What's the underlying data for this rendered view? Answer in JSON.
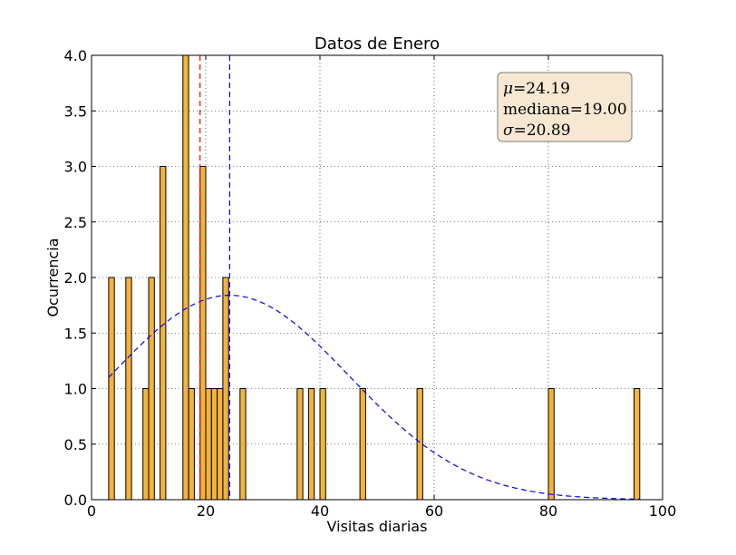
{
  "chart_data": {
    "type": "bar",
    "title": "Datos de Enero",
    "xlabel": "Visitas diarias",
    "ylabel": "Ocurrencia",
    "xlim": [
      0,
      100
    ],
    "ylim": [
      0,
      4.0
    ],
    "xticks": [
      "0",
      "20",
      "40",
      "60",
      "80",
      "100"
    ],
    "yticks": [
      "0.0",
      "0.5",
      "1.0",
      "1.5",
      "2.0",
      "2.5",
      "3.0",
      "3.5",
      "4.0"
    ],
    "grid": true,
    "bar_color": "#f4b33c",
    "bin_width": 1,
    "bars": [
      {
        "x": 3.5,
        "value": 2
      },
      {
        "x": 6.5,
        "value": 2
      },
      {
        "x": 9.5,
        "value": 1
      },
      {
        "x": 10.5,
        "value": 2
      },
      {
        "x": 12.5,
        "value": 3
      },
      {
        "x": 16.5,
        "value": 4
      },
      {
        "x": 17.5,
        "value": 1
      },
      {
        "x": 19.5,
        "value": 3
      },
      {
        "x": 20.5,
        "value": 1
      },
      {
        "x": 21.5,
        "value": 1
      },
      {
        "x": 22.5,
        "value": 1
      },
      {
        "x": 23.5,
        "value": 2
      },
      {
        "x": 26.5,
        "value": 1
      },
      {
        "x": 36.5,
        "value": 1
      },
      {
        "x": 38.5,
        "value": 1
      },
      {
        "x": 40.5,
        "value": 1
      },
      {
        "x": 47.5,
        "value": 1
      },
      {
        "x": 57.5,
        "value": 1
      },
      {
        "x": 80.5,
        "value": 1
      },
      {
        "x": 95.5,
        "value": 1
      }
    ],
    "mean": 24.19,
    "median": 19.0,
    "std": 20.89,
    "mean_line_color": "#0000ff",
    "median_line_color": "#ff0000",
    "normal_curve": {
      "mu": 24.19,
      "sigma": 20.89,
      "peak": 1.84,
      "x_range": [
        3,
        96
      ],
      "color": "#0000ff"
    },
    "stats_box": {
      "mu_symbol": "μ",
      "mu_text": "=24.19",
      "median_text": "mediana=19.00",
      "sigma_symbol": "σ",
      "sigma_text": "=20.89",
      "placement": "top-right",
      "background": "#f7e8d3"
    }
  }
}
